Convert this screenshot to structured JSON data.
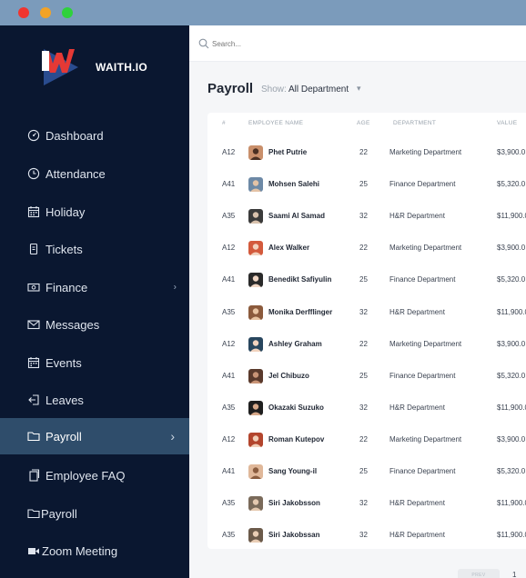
{
  "window": {
    "controls": [
      "close",
      "minimize",
      "maximize"
    ]
  },
  "brand": {
    "name": "WAITH.IO",
    "colors": {
      "red": "#e53935",
      "blue": "#2a4c8f"
    }
  },
  "sidebar": {
    "items": [
      {
        "label": "Dashboard",
        "icon": "dashboard-icon"
      },
      {
        "label": "Attendance",
        "icon": "clock-icon"
      },
      {
        "label": "Holiday",
        "icon": "calendar-icon"
      },
      {
        "label": "Tickets",
        "icon": "ticket-icon"
      },
      {
        "label": "Finance",
        "icon": "money-icon"
      },
      {
        "label": "Messages",
        "icon": "mail-icon"
      },
      {
        "label": "Events",
        "icon": "calendar-icon"
      },
      {
        "label": "Leaves",
        "icon": "exit-icon"
      },
      {
        "label": "Payroll",
        "icon": "folder-icon",
        "active": true
      },
      {
        "label": "Employee FAQ",
        "icon": "document-icon"
      },
      {
        "label": "Payroll",
        "icon": "folder-icon"
      },
      {
        "label": "Zoom Meeting",
        "icon": "video-camera-icon"
      }
    ]
  },
  "search": {
    "placeholder": "Search..."
  },
  "page": {
    "title": "Payroll",
    "show_label": "Show:",
    "show_value": "All Department"
  },
  "table": {
    "headers": {
      "id": "#",
      "name": "EMPLOYEE NAME",
      "age": "AGE",
      "department": "DEPARTMENT",
      "value": "VALUE"
    },
    "rows": [
      {
        "id": "A12",
        "name": "Phet Putrie",
        "age": "22",
        "department": "Marketing Department",
        "value": "$3,900.0"
      },
      {
        "id": "A41",
        "name": "Mohsen Salehi",
        "age": "25",
        "department": "Finance Department",
        "value": "$5,320.0"
      },
      {
        "id": "A35",
        "name": "Saami Al Samad",
        "age": "32",
        "department": "H&R Department",
        "value": "$11,900.0"
      },
      {
        "id": "A12",
        "name": "Alex Walker",
        "age": "22",
        "department": "Marketing Department",
        "value": "$3,900.0"
      },
      {
        "id": "A41",
        "name": "Benedikt Safiyulin",
        "age": "25",
        "department": "Finance Department",
        "value": "$5,320.0"
      },
      {
        "id": "A35",
        "name": "Monika Derfflinger",
        "age": "32",
        "department": "H&R Department",
        "value": "$11,900.0"
      },
      {
        "id": "A12",
        "name": "Ashley Graham",
        "age": "22",
        "department": "Marketing Department",
        "value": "$3,900.0"
      },
      {
        "id": "A41",
        "name": "Jel Chibuzo",
        "age": "25",
        "department": "Finance Department",
        "value": "$5,320.0"
      },
      {
        "id": "A35",
        "name": "Okazaki Suzuko",
        "age": "32",
        "department": "H&R Department",
        "value": "$11,900.0"
      },
      {
        "id": "A12",
        "name": "Roman Kutepov",
        "age": "22",
        "department": "Marketing Department",
        "value": "$3,900.0"
      },
      {
        "id": "A41",
        "name": "Sang Young-il",
        "age": "25",
        "department": "Finance Department",
        "value": "$5,320.0"
      },
      {
        "id": "A35",
        "name": "Siri Jakobsson",
        "age": "32",
        "department": "H&R Department",
        "value": "$11,900.0"
      },
      {
        "id": "A35",
        "name": "Siri Jakobssan",
        "age": "32",
        "department": "H&R Department",
        "value": "$11,900.0"
      }
    ]
  },
  "pagination": {
    "prev_label": "PREV",
    "current_page": "1"
  }
}
